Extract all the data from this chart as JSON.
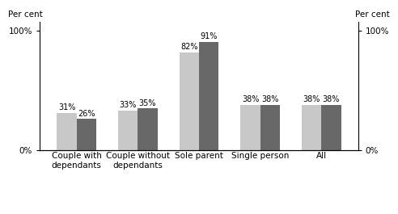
{
  "categories": [
    "Couple with\ndependants",
    "Couple without\ndependants",
    "Sole parent",
    "Single person",
    "All"
  ],
  "series_2005": [
    31,
    33,
    82,
    38,
    38
  ],
  "series_1997": [
    26,
    35,
    91,
    38,
    38
  ],
  "labels_2005": [
    "31%",
    "33%",
    "82%",
    "38%",
    "38%"
  ],
  "labels_1997": [
    "26%",
    "35%",
    "91%",
    "38%",
    "38%"
  ],
  "color_2005": "#c8c8c8",
  "color_1997": "#686868",
  "ylabel_left": "Per cent",
  "ylabel_right": "Per cent",
  "yticks": [
    0,
    100
  ],
  "yticklabels": [
    "0%",
    "100%"
  ],
  "ylim": [
    0,
    108
  ],
  "bar_width": 0.32,
  "label_fontsize": 7.0,
  "axis_fontsize": 7.5,
  "legend_fontsize": 7.5,
  "tick_label_fontsize": 7.5
}
